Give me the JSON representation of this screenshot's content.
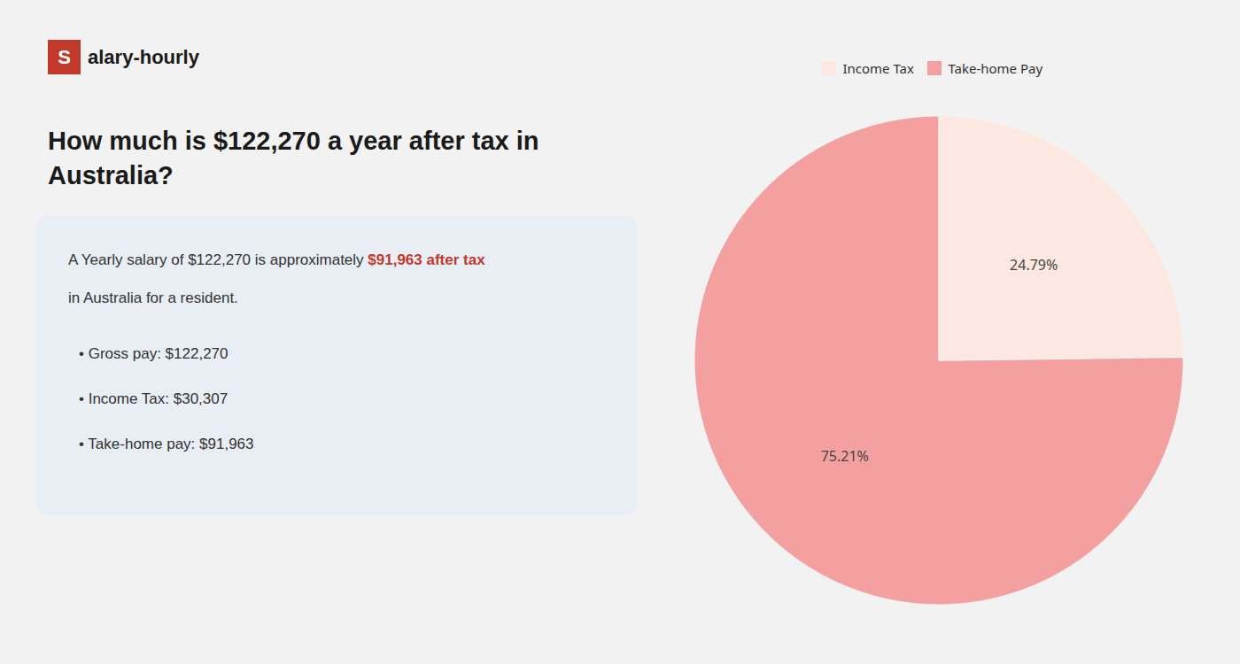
{
  "chart_data": {
    "type": "pie",
    "title": "How much is $122,270 a year after tax in\nAustralia?",
    "annotations": [
      {
        "text": "S",
        "color": "#c0392b"
      },
      {
        "text": "alary-hourly"
      },
      {
        "text": "A Yearly salary of $122,270 is approximately "
      },
      {
        "text": "$91,963 after tax",
        "color": "#c0392b"
      },
      {
        "text": "in Australia for a resident."
      },
      {
        "text": "• Gross pay: $122,270"
      },
      {
        "text": "• Income Tax: $30,307"
      },
      {
        "text": "• Take-home pay: $91,963"
      }
    ],
    "categories": [
      "Income Tax",
      "Take-home Pay"
    ],
    "values": [
      24.79,
      75.21
    ],
    "value_labels": [
      "24.79%",
      "75.21%"
    ],
    "data_labels": true,
    "colors": [
      "#fce8e0",
      "#f4a0a0"
    ],
    "legend": "top"
  }
}
